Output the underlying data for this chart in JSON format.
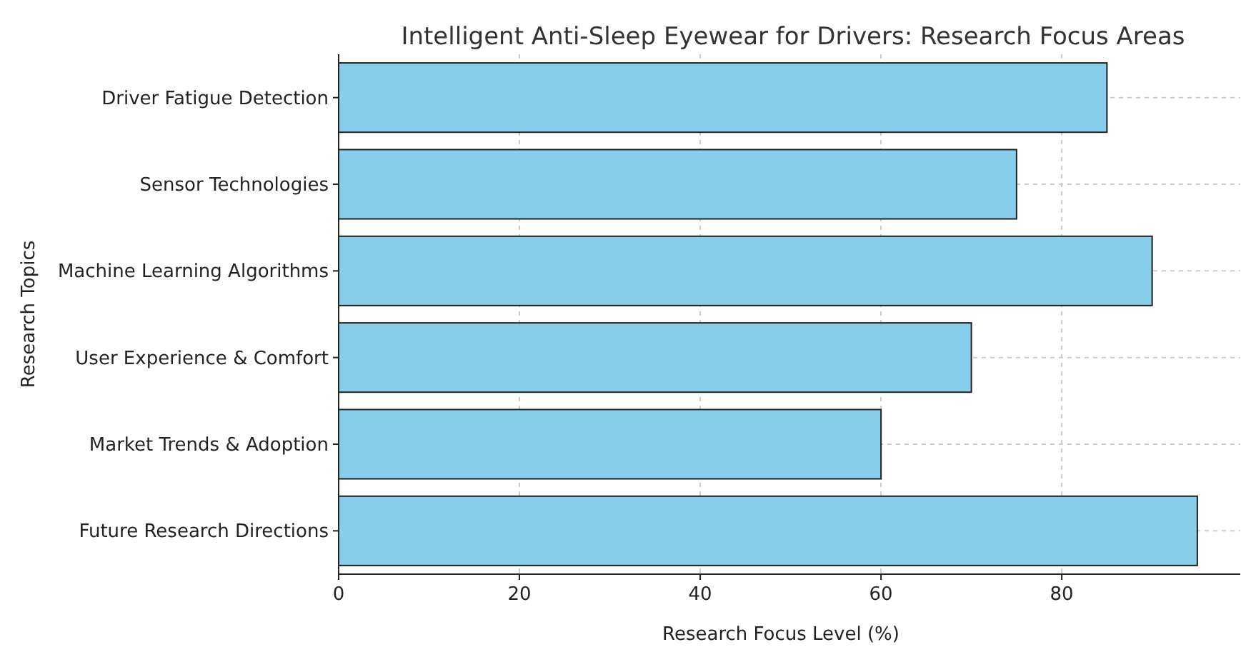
{
  "chart_data": {
    "type": "bar",
    "orientation": "horizontal",
    "title": "Intelligent Anti-Sleep Eyewear for Drivers: Research Focus Areas",
    "xlabel": "Research Focus Level (%)",
    "ylabel": "Research Topics",
    "categories": [
      "Driver Fatigue Detection",
      "Sensor Technologies",
      "Machine Learning Algorithms",
      "User Experience & Comfort",
      "Market Trends & Adoption",
      "Future Research Directions"
    ],
    "values": [
      85,
      75,
      90,
      70,
      60,
      95
    ],
    "color": "#87ceeb",
    "xlim": [
      0,
      99.75
    ],
    "xticks": [
      0,
      20,
      40,
      60,
      80
    ],
    "grid": true
  }
}
